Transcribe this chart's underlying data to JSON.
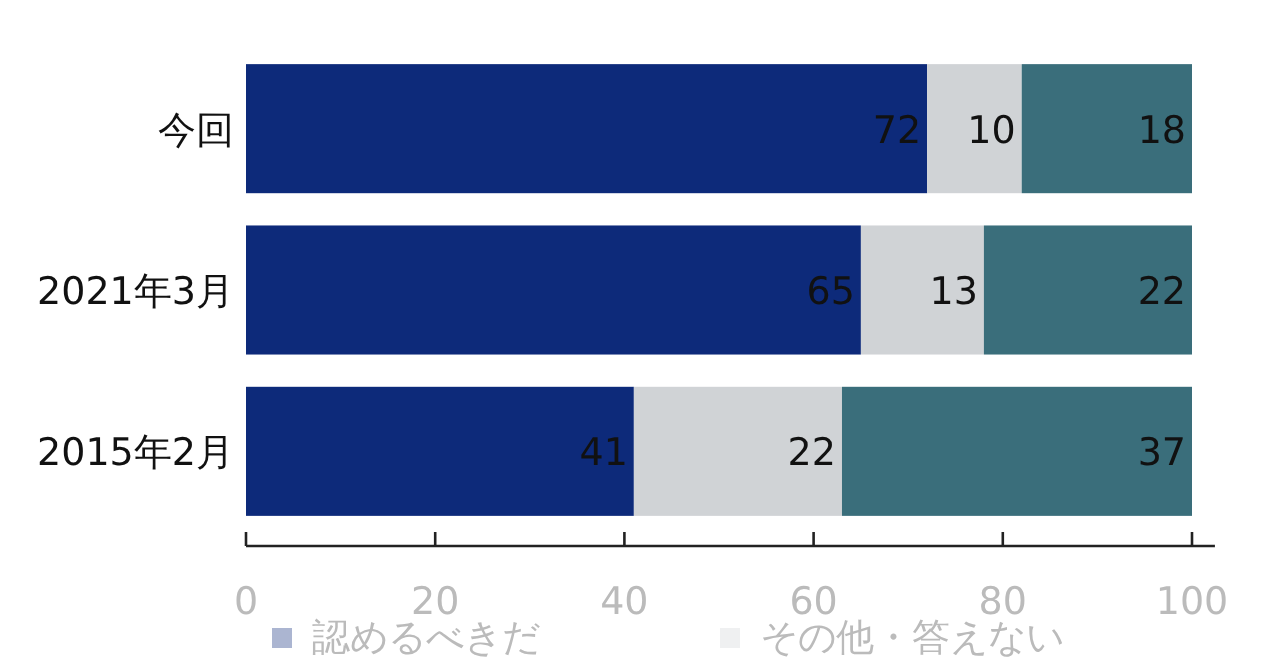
{
  "chart_data": {
    "type": "bar",
    "orientation": "horizontal",
    "stacked": true,
    "categories": [
      "今回",
      "2021年3月",
      "2015年2月"
    ],
    "series": [
      {
        "name": "認めるべきだ",
        "color": "#0d2a7a",
        "values": [
          72,
          65,
          41
        ]
      },
      {
        "name": "その他・答えない",
        "color": "#d0d3d6",
        "values": [
          10,
          13,
          22
        ]
      },
      {
        "color": "#3a6e7b",
        "values": [
          18,
          22,
          37
        ]
      }
    ],
    "xlim": [
      0,
      102
    ],
    "xticks": [
      0,
      20,
      40,
      60,
      80,
      100
    ],
    "data_labels": true,
    "legend": "bottom",
    "grid": false
  }
}
